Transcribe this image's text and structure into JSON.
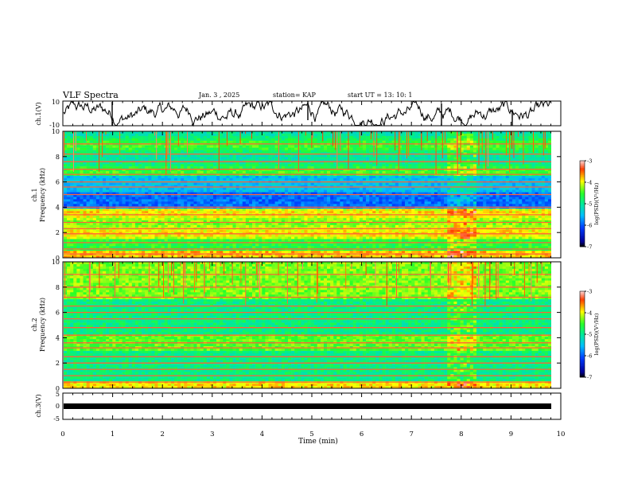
{
  "header": {
    "title": "VLF Spectra",
    "date": "Jan. 3 , 2025",
    "station": "station= KAP",
    "start": "start UT = 13: 10: 1"
  },
  "chart_data": [
    {
      "type": "line",
      "name": "ch1-waveform",
      "ylabel": "ch.1(V)",
      "ylim": [
        -10,
        10
      ],
      "ytick_labels": [
        "10",
        "-10"
      ],
      "xlim": [
        0,
        10
      ],
      "series": [
        {
          "name": "ch.1",
          "description": "noisy wideband voltage trace roughly between -10 and 10 V"
        }
      ]
    },
    {
      "type": "heatmap",
      "name": "ch1-spectrogram",
      "ylabel": "ch.1 Frequency (kHz)",
      "ylim": [
        0,
        10
      ],
      "ytick_labels": [
        "0",
        "2",
        "4",
        "6",
        "8",
        "10"
      ],
      "xlim": [
        0,
        9.83
      ],
      "colorbar": {
        "label": "log(PSD)(V²/Hz)",
        "range": [
          -7,
          -3
        ],
        "tick_labels": [
          "-3",
          "-4",
          "-5",
          "-6",
          "-7"
        ]
      },
      "burst_interval_min": [
        7.7,
        8.3
      ],
      "horizontal_lines_khz": [
        0.3,
        0.7,
        1.2,
        1.9,
        2.3,
        2.8,
        3.4,
        4.0,
        5.0,
        5.6,
        6.0,
        6.6,
        7.0,
        7.6,
        8.2,
        9.0
      ]
    },
    {
      "type": "heatmap",
      "name": "ch2-spectrogram",
      "ylabel": "ch.2 Frequency (kHz)",
      "ylim": [
        0,
        10
      ],
      "ytick_labels": [
        "0",
        "2",
        "4",
        "6",
        "8",
        "10"
      ],
      "xlim": [
        0,
        9.83
      ],
      "colorbar": {
        "label": "log(PSD)(V²/Hz)",
        "range": [
          -7,
          -3
        ],
        "tick_labels": [
          "-3",
          "-4",
          "-5",
          "-6",
          "-7"
        ]
      },
      "burst_interval_min": [
        7.7,
        8.3
      ],
      "horizontal_lines_khz": [
        0.5,
        1.0,
        1.5,
        2.0,
        2.5,
        3.2,
        3.6,
        4.2,
        4.8,
        5.5,
        6.0,
        6.5,
        7.2,
        8.0,
        9.0
      ]
    },
    {
      "type": "line",
      "name": "ch3-trace",
      "ylabel": "ch.3(V)",
      "ylim": [
        -5,
        5
      ],
      "ytick_labels": [
        "5",
        "0",
        "-5"
      ],
      "xlim": [
        0,
        10
      ],
      "series": [
        {
          "name": "ch.3",
          "description": "thick flat band near -0.8 V"
        }
      ]
    }
  ],
  "xaxis": {
    "label": "Time (min)",
    "range": [
      0,
      10
    ],
    "tick_labels": [
      "0",
      "1",
      "2",
      "3",
      "4",
      "5",
      "6",
      "7",
      "8",
      "9",
      "10"
    ]
  }
}
